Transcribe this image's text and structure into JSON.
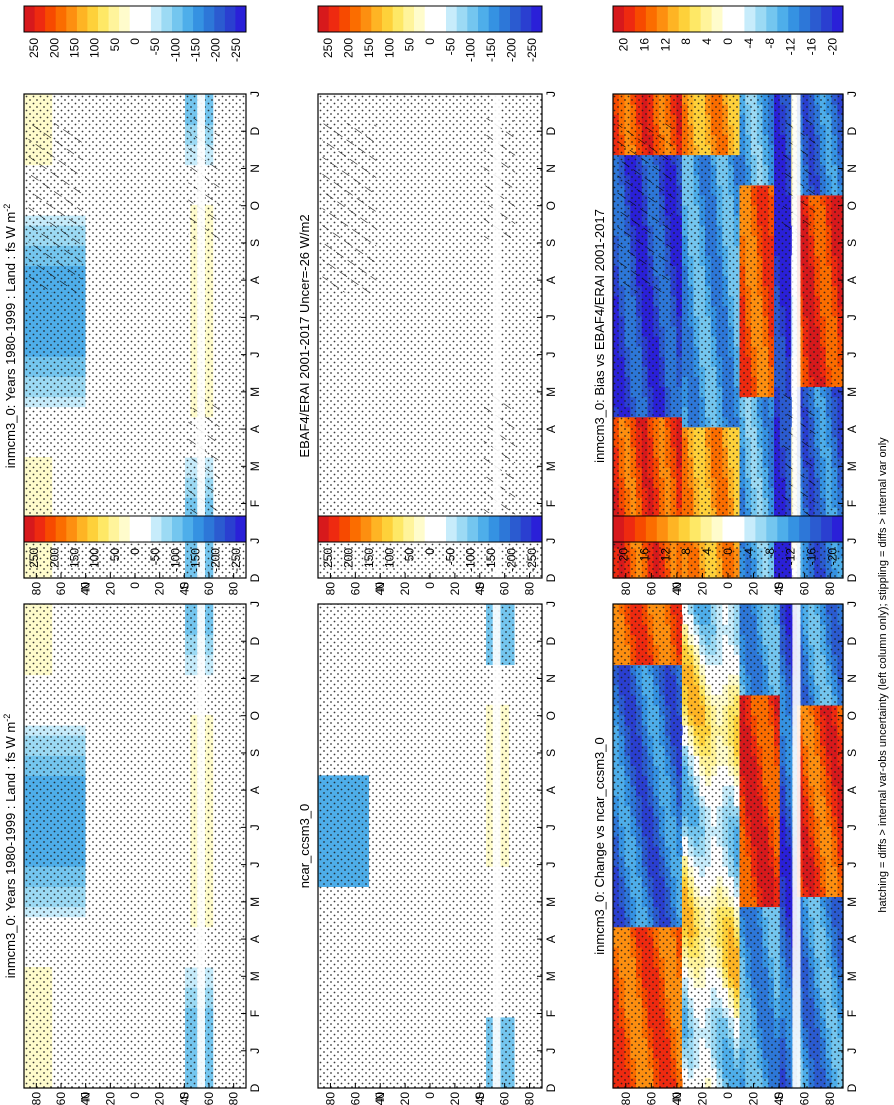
{
  "figure": {
    "footnote": "hatching = diffs > internal var-obs uncertainty (left column only); stippling = diffs > internal var only"
  },
  "chart_data": [
    {
      "type": "heatmap",
      "title": "inmcm3_0: Years 1980-1999 : Land : fs W m",
      "title_sup": "-2",
      "x_ticks": [
        "80",
        "60",
        "40",
        "20",
        "0",
        "20",
        "40",
        "60",
        "80"
      ],
      "x_ticks_hem": [
        "",
        "",
        "N",
        "",
        "",
        "",
        "S",
        "",
        ""
      ],
      "y_ticks": [
        "D",
        "J",
        "F",
        "M",
        "A",
        "M",
        "J",
        "J",
        "A",
        "S",
        "O",
        "N",
        "D",
        "J"
      ],
      "colorbar": {
        "labels": [
          "250",
          "200",
          "150",
          "100",
          "50",
          "0",
          "-50",
          "-100",
          "-150",
          "-200",
          "-250"
        ]
      },
      "hatching": true
    },
    {
      "type": "heatmap",
      "title": "EBAF4/ERAI 2001-2017 Uncer=-26 W/m2",
      "x_ticks": [
        "80",
        "60",
        "40",
        "20",
        "0",
        "20",
        "40",
        "60",
        "80"
      ],
      "x_ticks_hem": [
        "",
        "",
        "N",
        "",
        "",
        "",
        "S",
        "",
        ""
      ],
      "y_ticks": [
        "D",
        "J",
        "F",
        "M",
        "A",
        "M",
        "J",
        "J",
        "A",
        "S",
        "O",
        "N",
        "D",
        "J"
      ],
      "colorbar": {
        "labels": [
          "250",
          "200",
          "150",
          "100",
          "50",
          "0",
          "-50",
          "-100",
          "-150",
          "-200",
          "-250"
        ]
      },
      "hatching": true
    },
    {
      "type": "heatmap",
      "title": "inmcm3_0: Bias vs EBAF4/ERAI 2001-2017",
      "x_ticks": [
        "80",
        "60",
        "40",
        "20",
        "0",
        "20",
        "40",
        "60",
        "80"
      ],
      "x_ticks_hem": [
        "",
        "",
        "N",
        "",
        "",
        "",
        "S",
        "",
        ""
      ],
      "y_ticks": [
        "D",
        "J",
        "F",
        "M",
        "A",
        "M",
        "J",
        "J",
        "A",
        "S",
        "O",
        "N",
        "D",
        "J"
      ],
      "colorbar": {
        "labels": [
          "20",
          "16",
          "12",
          "8",
          "4",
          "0",
          "-4",
          "-8",
          "-12",
          "-16",
          "-20"
        ]
      },
      "hatching": true
    },
    {
      "type": "heatmap",
      "title": "inmcm3_0: Years 1980-1999 : Land : fs W m",
      "title_sup": "-2",
      "x_ticks": [
        "80",
        "60",
        "40",
        "20",
        "0",
        "20",
        "40",
        "60",
        "80"
      ],
      "x_ticks_hem": [
        "",
        "",
        "N",
        "",
        "",
        "",
        "S",
        "",
        ""
      ],
      "y_ticks": [
        "D",
        "J",
        "F",
        "M",
        "A",
        "M",
        "J",
        "J",
        "A",
        "S",
        "O",
        "N",
        "D",
        "J"
      ],
      "colorbar": {
        "labels": [
          "250",
          "200",
          "150",
          "100",
          "50",
          "0",
          "-50",
          "-100",
          "-150",
          "-200",
          "-250"
        ]
      },
      "hatching": false
    },
    {
      "type": "heatmap",
      "title": "ncar_ccsm3_0",
      "x_ticks": [
        "80",
        "60",
        "40",
        "20",
        "0",
        "20",
        "40",
        "60",
        "80"
      ],
      "x_ticks_hem": [
        "",
        "",
        "N",
        "",
        "",
        "",
        "S",
        "",
        ""
      ],
      "y_ticks": [
        "D",
        "J",
        "F",
        "M",
        "A",
        "M",
        "J",
        "J",
        "A",
        "S",
        "O",
        "N",
        "D",
        "J"
      ],
      "colorbar": {
        "labels": [
          "250",
          "200",
          "150",
          "100",
          "50",
          "0",
          "-50",
          "-100",
          "-150",
          "-200",
          "-250"
        ]
      },
      "hatching": false
    },
    {
      "type": "heatmap",
      "title": "inmcm3_0: Change vs ncar_ccsm3_0",
      "x_ticks": [
        "80",
        "60",
        "40",
        "20",
        "0",
        "20",
        "40",
        "60",
        "80"
      ],
      "x_ticks_hem": [
        "",
        "",
        "N",
        "",
        "",
        "",
        "S",
        "",
        ""
      ],
      "y_ticks": [
        "D",
        "J",
        "F",
        "M",
        "A",
        "M",
        "J",
        "J",
        "A",
        "S",
        "O",
        "N",
        "D",
        "J"
      ],
      "colorbar": {
        "labels": [
          "20",
          "16",
          "12",
          "8",
          "4",
          "0",
          "-4",
          "-8",
          "-12",
          "-16",
          "-20"
        ]
      },
      "hatching": false
    }
  ],
  "colors": {
    "scale": [
      "#d7191c",
      "#ee2a10",
      "#f74a00",
      "#fb6d00",
      "#fd8f10",
      "#feb424",
      "#fed13a",
      "#fee866",
      "#fff49b",
      "#fffccc",
      "#ffffff",
      "#ffffff",
      "#c7ecfb",
      "#9cdaf4",
      "#74c6ef",
      "#4eaeea",
      "#3592e2",
      "#2d77d8",
      "#2b5bd0",
      "#2a3fd0",
      "#2a20d8"
    ],
    "stipple": "#1a1a1a"
  }
}
